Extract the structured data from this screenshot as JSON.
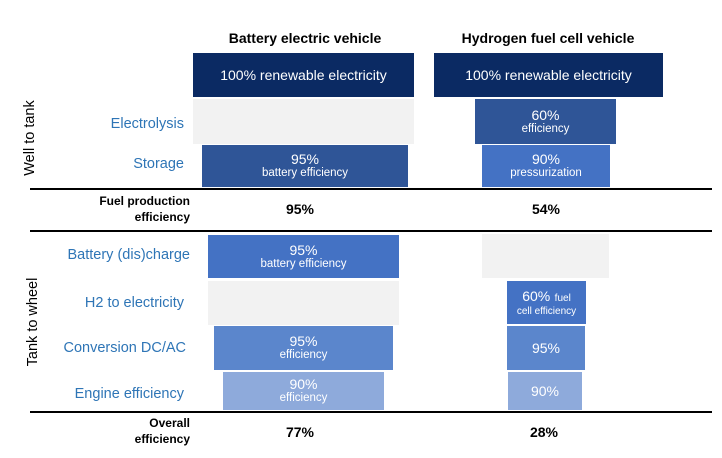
{
  "columns": {
    "bev": "Battery electric vehicle",
    "fcev": "Hydrogen fuel cell vehicle"
  },
  "sections": {
    "well_to_tank": "Well to tank",
    "tank_to_wheel": "Tank to wheel"
  },
  "source": {
    "bev": "100% renewable electricity",
    "fcev": "100% renewable electricity"
  },
  "rows": {
    "electrolysis": {
      "label": "Electrolysis",
      "fcev_value": "60%",
      "fcev_note": "efficiency"
    },
    "storage": {
      "label": "Storage",
      "bev_value": "95%",
      "bev_note": "battery efficiency",
      "fcev_value": "90%",
      "fcev_note": "pressurization"
    },
    "battery_discharge": {
      "label": "Battery (dis)charge",
      "bev_value": "95%",
      "bev_note": "battery efficiency"
    },
    "h2_to_electricity": {
      "label": "H2 to electricity",
      "fcev_value": "60%",
      "fcev_note_inline": "fuel",
      "fcev_note": "cell efficiency"
    },
    "conversion": {
      "label": "Conversion DC/AC",
      "bev_value": "95%",
      "bev_note": "efficiency",
      "fcev_value": "95%"
    },
    "engine": {
      "label": "Engine efficiency",
      "bev_value": "90%",
      "bev_note": "efficiency",
      "fcev_value": "90%"
    }
  },
  "summary": {
    "fuel_production": {
      "label_line1": "Fuel production",
      "label_line2": "efficiency",
      "bev": "95%",
      "fcev": "54%"
    },
    "overall": {
      "label_line1": "Overall",
      "label_line2": "efficiency",
      "bev": "77%",
      "fcev": "28%"
    }
  },
  "colors": {
    "navy": "#0b2a63",
    "dark_blue": "#2f5597",
    "medium_blue": "#4472c4",
    "mid_light_blue": "#5b86cc",
    "light_blue": "#8eaadb",
    "label_blue": "#2e75b6",
    "ghost_gray": "#f2f2f2"
  }
}
